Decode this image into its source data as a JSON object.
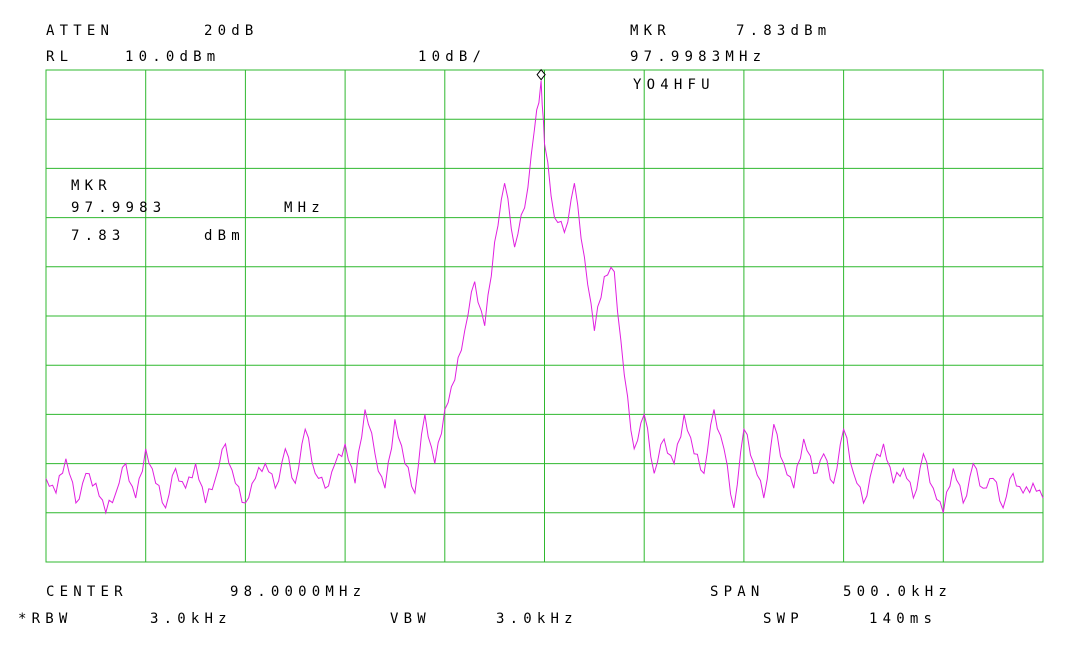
{
  "header": {
    "atten_label": "ATTEN",
    "atten_value": "20dB",
    "rl_label": "RL",
    "rl_value": "10.0dBm",
    "scale": "10dB/",
    "mkr_label": "MKR",
    "mkr_amplitude": "7.83dBm",
    "mkr_frequency": "97.9983MHz",
    "callsign": "YO4HFU"
  },
  "marker_box": {
    "label": "MKR",
    "frequency": "97.9983",
    "frequency_unit": "MHz",
    "amplitude": "7.83",
    "amplitude_unit": "dBm"
  },
  "footer": {
    "center_label": "CENTER",
    "center_value": "98.0000MHz",
    "span_label": "SPAN",
    "span_value": "500.0kHz",
    "rbw_label": "*RBW",
    "rbw_value": "3.0kHz",
    "vbw_label": "VBW",
    "vbw_value": "3.0kHz",
    "swp_label": "SWP",
    "swp_value": "140ms"
  },
  "colors": {
    "grid": "#2fb82f",
    "trace": "#e020e0",
    "text": "#000000"
  },
  "chart_data": {
    "type": "line",
    "x_unit": "MHz",
    "y_unit": "dBm",
    "xlim": [
      97.75,
      98.25
    ],
    "ylim": [
      -90,
      10
    ],
    "grid": true,
    "x_divisions": 10,
    "y_divisions": 10,
    "marker": {
      "x": 97.9983,
      "y": 7.83
    },
    "series": [
      {
        "points": [
          [
            97.75,
            -73
          ],
          [
            97.755,
            -76
          ],
          [
            97.76,
            -69
          ],
          [
            97.765,
            -78
          ],
          [
            97.77,
            -72
          ],
          [
            97.775,
            -74
          ],
          [
            97.78,
            -80
          ],
          [
            97.785,
            -76
          ],
          [
            97.79,
            -70
          ],
          [
            97.795,
            -77
          ],
          [
            97.8,
            -67
          ],
          [
            97.805,
            -74
          ],
          [
            97.81,
            -79
          ],
          [
            97.815,
            -71
          ],
          [
            97.82,
            -75
          ],
          [
            97.825,
            -70
          ],
          [
            97.83,
            -78
          ],
          [
            97.835,
            -73
          ],
          [
            97.84,
            -66
          ],
          [
            97.845,
            -74
          ],
          [
            97.85,
            -78
          ],
          [
            97.855,
            -73
          ],
          [
            97.86,
            -70
          ],
          [
            97.865,
            -75
          ],
          [
            97.87,
            -67
          ],
          [
            97.875,
            -74
          ],
          [
            97.88,
            -63
          ],
          [
            97.885,
            -72
          ],
          [
            97.89,
            -75
          ],
          [
            97.895,
            -70
          ],
          [
            97.9,
            -66
          ],
          [
            97.905,
            -74
          ],
          [
            97.91,
            -59
          ],
          [
            97.915,
            -68
          ],
          [
            97.92,
            -75
          ],
          [
            97.925,
            -61
          ],
          [
            97.93,
            -70
          ],
          [
            97.935,
            -76
          ],
          [
            97.94,
            -60
          ],
          [
            97.945,
            -70
          ],
          [
            97.95,
            -59
          ],
          [
            97.955,
            -53
          ],
          [
            97.96,
            -43
          ],
          [
            97.965,
            -33
          ],
          [
            97.97,
            -42
          ],
          [
            97.975,
            -25
          ],
          [
            97.98,
            -13
          ],
          [
            97.985,
            -26
          ],
          [
            97.99,
            -18
          ],
          [
            97.995,
            -2
          ],
          [
            97.9983,
            7.83
          ],
          [
            98.0,
            -5
          ],
          [
            98.005,
            -20
          ],
          [
            98.01,
            -23
          ],
          [
            98.015,
            -13
          ],
          [
            98.02,
            -28
          ],
          [
            98.025,
            -43
          ],
          [
            98.03,
            -32
          ],
          [
            98.035,
            -31
          ],
          [
            98.04,
            -52
          ],
          [
            98.045,
            -67
          ],
          [
            98.05,
            -60
          ],
          [
            98.055,
            -72
          ],
          [
            98.06,
            -65
          ],
          [
            98.065,
            -70
          ],
          [
            98.07,
            -60
          ],
          [
            98.075,
            -68
          ],
          [
            98.08,
            -72
          ],
          [
            98.085,
            -59
          ],
          [
            98.09,
            -67
          ],
          [
            98.095,
            -79
          ],
          [
            98.1,
            -63
          ],
          [
            98.105,
            -70
          ],
          [
            98.11,
            -77
          ],
          [
            98.115,
            -62
          ],
          [
            98.12,
            -70
          ],
          [
            98.125,
            -75
          ],
          [
            98.13,
            -65
          ],
          [
            98.135,
            -72
          ],
          [
            98.14,
            -68
          ],
          [
            98.145,
            -74
          ],
          [
            98.15,
            -63
          ],
          [
            98.155,
            -72
          ],
          [
            98.16,
            -78
          ],
          [
            98.165,
            -70
          ],
          [
            98.17,
            -66
          ],
          [
            98.175,
            -74
          ],
          [
            98.18,
            -71
          ],
          [
            98.185,
            -77
          ],
          [
            98.19,
            -68
          ],
          [
            98.195,
            -75
          ],
          [
            98.2,
            -80
          ],
          [
            98.205,
            -71
          ],
          [
            98.21,
            -78
          ],
          [
            98.215,
            -70
          ],
          [
            98.22,
            -75
          ],
          [
            98.225,
            -73
          ],
          [
            98.23,
            -79
          ],
          [
            98.235,
            -72
          ],
          [
            98.24,
            -76
          ],
          [
            98.245,
            -74
          ],
          [
            98.25,
            -77
          ]
        ]
      }
    ]
  }
}
